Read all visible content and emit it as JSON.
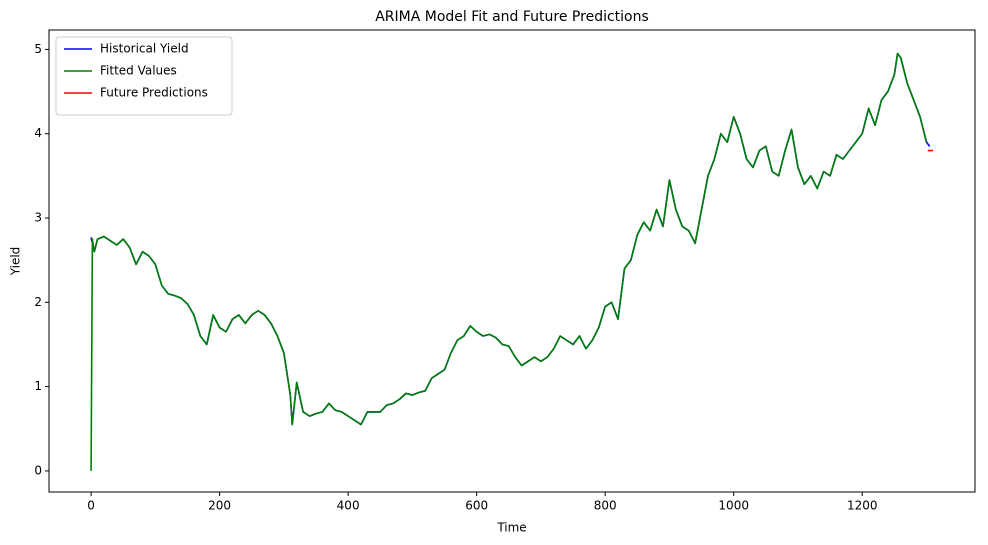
{
  "chart_data": {
    "type": "line",
    "title": "ARIMA Model Fit and Future Predictions",
    "x_label": "Time",
    "y_label": "Yield",
    "xlim": [
      -65.5,
      1375.5
    ],
    "ylim": [
      -0.25,
      5.23
    ],
    "xticks": [
      0,
      200,
      400,
      600,
      800,
      1000,
      1200
    ],
    "yticks": [
      0,
      1,
      2,
      3,
      4,
      5
    ],
    "grid": false,
    "legend": "upper left",
    "series": [
      {
        "name": "Historical Yield",
        "color": "#0000ff",
        "x": [
          0,
          5,
          10,
          20,
          30,
          40,
          50,
          60,
          70,
          80,
          90,
          100,
          110,
          120,
          130,
          140,
          150,
          160,
          170,
          180,
          190,
          200,
          210,
          220,
          230,
          240,
          250,
          260,
          270,
          280,
          290,
          300,
          310,
          313,
          320,
          330,
          340,
          350,
          360,
          370,
          380,
          390,
          400,
          410,
          420,
          430,
          440,
          450,
          460,
          470,
          480,
          490,
          500,
          510,
          520,
          530,
          540,
          550,
          560,
          570,
          580,
          590,
          600,
          610,
          620,
          630,
          640,
          650,
          660,
          670,
          680,
          690,
          700,
          710,
          720,
          730,
          740,
          750,
          760,
          770,
          780,
          790,
          800,
          810,
          820,
          830,
          840,
          850,
          860,
          870,
          880,
          890,
          900,
          910,
          920,
          930,
          940,
          950,
          960,
          970,
          980,
          990,
          1000,
          1010,
          1020,
          1030,
          1040,
          1050,
          1060,
          1070,
          1080,
          1090,
          1100,
          1110,
          1120,
          1130,
          1140,
          1150,
          1160,
          1170,
          1180,
          1190,
          1200,
          1210,
          1220,
          1230,
          1240,
          1250,
          1255,
          1260,
          1270,
          1280,
          1290,
          1300,
          1305
        ],
        "values": [
          2.77,
          2.6,
          2.75,
          2.78,
          2.73,
          2.68,
          2.75,
          2.65,
          2.45,
          2.6,
          2.55,
          2.45,
          2.2,
          2.1,
          2.08,
          2.05,
          1.98,
          1.85,
          1.6,
          1.5,
          1.85,
          1.7,
          1.65,
          1.8,
          1.85,
          1.75,
          1.85,
          1.9,
          1.85,
          1.75,
          1.6,
          1.4,
          0.9,
          0.55,
          1.05,
          0.7,
          0.65,
          0.68,
          0.7,
          0.8,
          0.72,
          0.7,
          0.65,
          0.6,
          0.55,
          0.7,
          0.7,
          0.7,
          0.78,
          0.8,
          0.85,
          0.92,
          0.9,
          0.93,
          0.95,
          1.1,
          1.15,
          1.2,
          1.4,
          1.55,
          1.6,
          1.72,
          1.65,
          1.6,
          1.62,
          1.58,
          1.5,
          1.48,
          1.35,
          1.25,
          1.3,
          1.35,
          1.3,
          1.35,
          1.45,
          1.6,
          1.55,
          1.5,
          1.6,
          1.45,
          1.55,
          1.7,
          1.95,
          2.0,
          1.8,
          2.4,
          2.5,
          2.8,
          2.95,
          2.85,
          3.1,
          2.9,
          3.45,
          3.1,
          2.9,
          2.85,
          2.7,
          3.1,
          3.5,
          3.7,
          4.0,
          3.9,
          4.2,
          4.0,
          3.7,
          3.6,
          3.8,
          3.85,
          3.55,
          3.5,
          3.8,
          4.05,
          3.6,
          3.4,
          3.5,
          3.35,
          3.55,
          3.5,
          3.75,
          3.7,
          3.8,
          3.9,
          4.0,
          4.3,
          4.1,
          4.4,
          4.5,
          4.7,
          4.95,
          4.9,
          4.6,
          4.4,
          4.2,
          3.9,
          3.85
        ]
      },
      {
        "name": "Fitted Values",
        "color": "#008000",
        "x": [
          0,
          2,
          5,
          10,
          20,
          30,
          40,
          50,
          60,
          70,
          80,
          90,
          100,
          110,
          120,
          130,
          140,
          150,
          160,
          170,
          180,
          190,
          200,
          210,
          220,
          230,
          240,
          250,
          260,
          270,
          280,
          290,
          300,
          310,
          313,
          320,
          330,
          340,
          350,
          360,
          370,
          380,
          390,
          400,
          410,
          420,
          430,
          440,
          450,
          460,
          470,
          480,
          490,
          500,
          510,
          520,
          530,
          540,
          550,
          560,
          570,
          580,
          590,
          600,
          610,
          620,
          630,
          640,
          650,
          660,
          670,
          680,
          690,
          700,
          710,
          720,
          730,
          740,
          750,
          760,
          770,
          780,
          790,
          800,
          810,
          820,
          830,
          840,
          850,
          860,
          870,
          880,
          890,
          900,
          910,
          920,
          930,
          940,
          950,
          960,
          970,
          980,
          990,
          1000,
          1010,
          1020,
          1030,
          1040,
          1050,
          1060,
          1070,
          1080,
          1090,
          1100,
          1110,
          1120,
          1130,
          1140,
          1150,
          1160,
          1170,
          1180,
          1190,
          1200,
          1210,
          1220,
          1230,
          1240,
          1250,
          1255,
          1260,
          1270,
          1280,
          1290,
          1300
        ],
        "values": [
          0,
          2.75,
          2.6,
          2.75,
          2.78,
          2.73,
          2.68,
          2.75,
          2.65,
          2.45,
          2.6,
          2.55,
          2.45,
          2.2,
          2.1,
          2.08,
          2.05,
          1.98,
          1.85,
          1.6,
          1.5,
          1.85,
          1.7,
          1.65,
          1.8,
          1.85,
          1.75,
          1.85,
          1.9,
          1.85,
          1.75,
          1.6,
          1.4,
          0.9,
          0.55,
          1.05,
          0.7,
          0.65,
          0.68,
          0.7,
          0.8,
          0.72,
          0.7,
          0.65,
          0.6,
          0.55,
          0.7,
          0.7,
          0.7,
          0.78,
          0.8,
          0.85,
          0.92,
          0.9,
          0.93,
          0.95,
          1.1,
          1.15,
          1.2,
          1.4,
          1.55,
          1.6,
          1.72,
          1.65,
          1.6,
          1.62,
          1.58,
          1.5,
          1.48,
          1.35,
          1.25,
          1.3,
          1.35,
          1.3,
          1.35,
          1.45,
          1.6,
          1.55,
          1.5,
          1.6,
          1.45,
          1.55,
          1.7,
          1.95,
          2.0,
          1.8,
          2.4,
          2.5,
          2.8,
          2.95,
          2.85,
          3.1,
          2.9,
          3.45,
          3.1,
          2.9,
          2.85,
          2.7,
          3.1,
          3.5,
          3.7,
          4.0,
          3.9,
          4.2,
          4.0,
          3.7,
          3.6,
          3.8,
          3.85,
          3.55,
          3.5,
          3.8,
          4.05,
          3.6,
          3.4,
          3.5,
          3.35,
          3.55,
          3.5,
          3.75,
          3.7,
          3.8,
          3.9,
          4.0,
          4.3,
          4.1,
          4.4,
          4.5,
          4.7,
          4.95,
          4.9,
          4.6,
          4.4,
          4.2,
          3.9
        ]
      },
      {
        "name": "Future Predictions",
        "color": "#ff0000",
        "x": [
          1302,
          1305,
          1310
        ],
        "values": [
          3.8,
          3.8,
          3.8
        ]
      }
    ]
  }
}
